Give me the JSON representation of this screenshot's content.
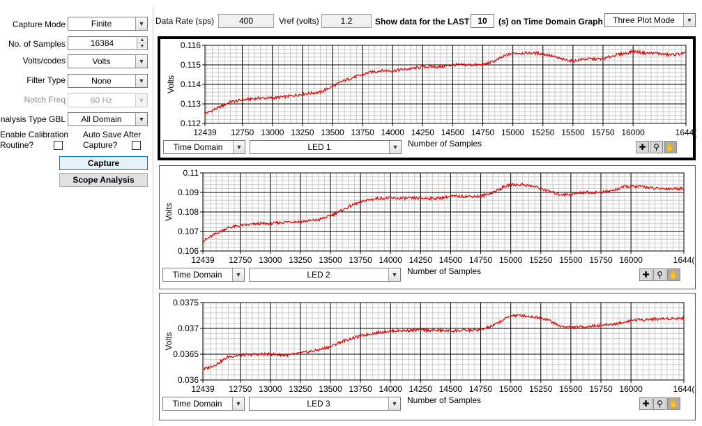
{
  "left_panel": {
    "capture_mode": {
      "label": "Capture Mode",
      "value": "Finite"
    },
    "num_samples": {
      "label": "No. of Samples",
      "value": "16384"
    },
    "volts_codes": {
      "label": "Volts/codes",
      "value": "Volts"
    },
    "filter_type": {
      "label": "Filter Type",
      "value": "None"
    },
    "notch_freq": {
      "label": "Notch Freq",
      "value": "60 Hz"
    },
    "analysis_type": {
      "label": "nalysis Type GBL",
      "value": "All Domain"
    },
    "enable_calibration": {
      "label_line1": "Enable Calibration",
      "label_line2": "Routine?"
    },
    "auto_save": {
      "label_line1": "Auto Save After",
      "label_line2": "Capture?"
    },
    "capture_button": "Capture",
    "scope_button": "Scope Analysis"
  },
  "top_bar": {
    "data_rate_label": "Data Rate (sps)",
    "data_rate_value": "400",
    "vref_label": "Vref (volts)",
    "vref_value": "1.2",
    "show_prefix": "Show data for the LAST",
    "show_value": "10",
    "show_suffix": "(s) on Time Domain Graph",
    "plot_mode": "Three Plot Mode"
  },
  "plots": [
    {
      "ylabel": "Volts",
      "yticks": [
        "0.116",
        "0.115",
        "0.114",
        "0.113",
        "0.112"
      ],
      "xticks": [
        "12439",
        "12750",
        "13000",
        "13250",
        "13500",
        "13750",
        "14000",
        "14250",
        "14500",
        "14750",
        "15000",
        "15250",
        "15500",
        "15750",
        "16000",
        "1644("
      ],
      "xlabel": "Number of Samples",
      "domain_select": "Time Domain",
      "led_select": "LED 1"
    },
    {
      "ylabel": "Volts",
      "yticks": [
        "0.11",
        "0.109",
        "0.108",
        "0.107",
        "0.106"
      ],
      "xticks": [
        "12439",
        "12750",
        "13000",
        "13250",
        "13500",
        "13750",
        "14000",
        "14250",
        "14500",
        "14750",
        "15000",
        "15250",
        "15500",
        "15750",
        "16000",
        "1644("
      ],
      "xlabel": "Number of Samples",
      "domain_select": "Time Domain",
      "led_select": "LED 2"
    },
    {
      "ylabel": "Volts",
      "yticks": [
        "0.0375",
        "0.037",
        "0.0365",
        "0.036"
      ],
      "xticks": [
        "12439",
        "12750",
        "13000",
        "13250",
        "13500",
        "13750",
        "14000",
        "14250",
        "14500",
        "14750",
        "15000",
        "15250",
        "15500",
        "15750",
        "16000",
        "1644("
      ],
      "xlabel": "Number of Samples",
      "domain_select": "Time Domain",
      "led_select": "LED 3"
    }
  ],
  "colors": {
    "trace": "#e00000",
    "grid_major": "#000000",
    "grid_minor": "#c8c8c8",
    "selected_border": "#000000"
  },
  "icons": [
    "crosshair-cursor-icon",
    "zoom-icon",
    "pan-hand-icon"
  ],
  "chart_data": [
    {
      "type": "line",
      "ylabel": "Volts",
      "xlabel": "Number of Samples",
      "xlim": [
        12439,
        16440
      ],
      "ylim": [
        0.112,
        0.116
      ],
      "x": [
        12439,
        12550,
        12650,
        12750,
        12900,
        13000,
        13150,
        13250,
        13400,
        13500,
        13600,
        13700,
        13800,
        13900,
        14000,
        14150,
        14250,
        14400,
        14500,
        14600,
        14750,
        14850,
        14950,
        15000,
        15100,
        15200,
        15300,
        15400,
        15500,
        15600,
        15700,
        15750,
        15850,
        15950,
        16000,
        16100,
        16200,
        16300,
        16440
      ],
      "values": [
        0.1125,
        0.1128,
        0.1131,
        0.1132,
        0.1133,
        0.1133,
        0.1134,
        0.1135,
        0.1136,
        0.1139,
        0.1142,
        0.1144,
        0.1146,
        0.1147,
        0.1147,
        0.1148,
        0.1149,
        0.1149,
        0.115,
        0.115,
        0.115,
        0.1152,
        0.1155,
        0.1156,
        0.1156,
        0.1156,
        0.1155,
        0.1153,
        0.1152,
        0.1153,
        0.1153,
        0.1153,
        0.1155,
        0.1156,
        0.1157,
        0.1156,
        0.1156,
        0.1155,
        0.1156
      ]
    },
    {
      "type": "line",
      "ylabel": "Volts",
      "xlabel": "Number of Samples",
      "xlim": [
        12439,
        16440
      ],
      "ylim": [
        0.106,
        0.11
      ],
      "x": [
        12439,
        12550,
        12650,
        12750,
        12900,
        13000,
        13150,
        13250,
        13400,
        13500,
        13600,
        13700,
        13800,
        13900,
        14000,
        14150,
        14250,
        14400,
        14500,
        14600,
        14750,
        14850,
        14950,
        15000,
        15100,
        15200,
        15300,
        15400,
        15500,
        15600,
        15700,
        15750,
        15850,
        15950,
        16000,
        16100,
        16200,
        16300,
        16440
      ],
      "values": [
        0.1065,
        0.1069,
        0.1072,
        0.1073,
        0.1074,
        0.1074,
        0.1075,
        0.1075,
        0.1076,
        0.1078,
        0.1081,
        0.1084,
        0.1086,
        0.1087,
        0.1087,
        0.1087,
        0.1087,
        0.1087,
        0.1088,
        0.1088,
        0.1088,
        0.109,
        0.1093,
        0.1094,
        0.1094,
        0.1093,
        0.1091,
        0.1089,
        0.1089,
        0.109,
        0.109,
        0.109,
        0.1091,
        0.1093,
        0.1093,
        0.1093,
        0.1092,
        0.1092,
        0.1092
      ]
    },
    {
      "type": "line",
      "ylabel": "Volts",
      "xlabel": "Number of Samples",
      "xlim": [
        12439,
        16440
      ],
      "ylim": [
        0.036,
        0.0375
      ],
      "x": [
        12439,
        12550,
        12650,
        12750,
        12900,
        13000,
        13150,
        13250,
        13400,
        13500,
        13600,
        13700,
        13800,
        13900,
        14000,
        14150,
        14250,
        14400,
        14500,
        14600,
        14750,
        14850,
        14950,
        15000,
        15100,
        15200,
        15300,
        15400,
        15500,
        15600,
        15700,
        15750,
        15850,
        15950,
        16000,
        16100,
        16200,
        16300,
        16440
      ],
      "values": [
        0.0362,
        0.0363,
        0.03645,
        0.03648,
        0.0365,
        0.0365,
        0.03648,
        0.03652,
        0.03658,
        0.03665,
        0.03675,
        0.03682,
        0.03688,
        0.03692,
        0.03695,
        0.03696,
        0.03697,
        0.03696,
        0.03695,
        0.03696,
        0.03697,
        0.03705,
        0.03718,
        0.03725,
        0.03725,
        0.03722,
        0.03718,
        0.03705,
        0.03702,
        0.03703,
        0.03705,
        0.03706,
        0.03708,
        0.03712,
        0.03716,
        0.03717,
        0.03718,
        0.03719,
        0.0372
      ]
    }
  ]
}
